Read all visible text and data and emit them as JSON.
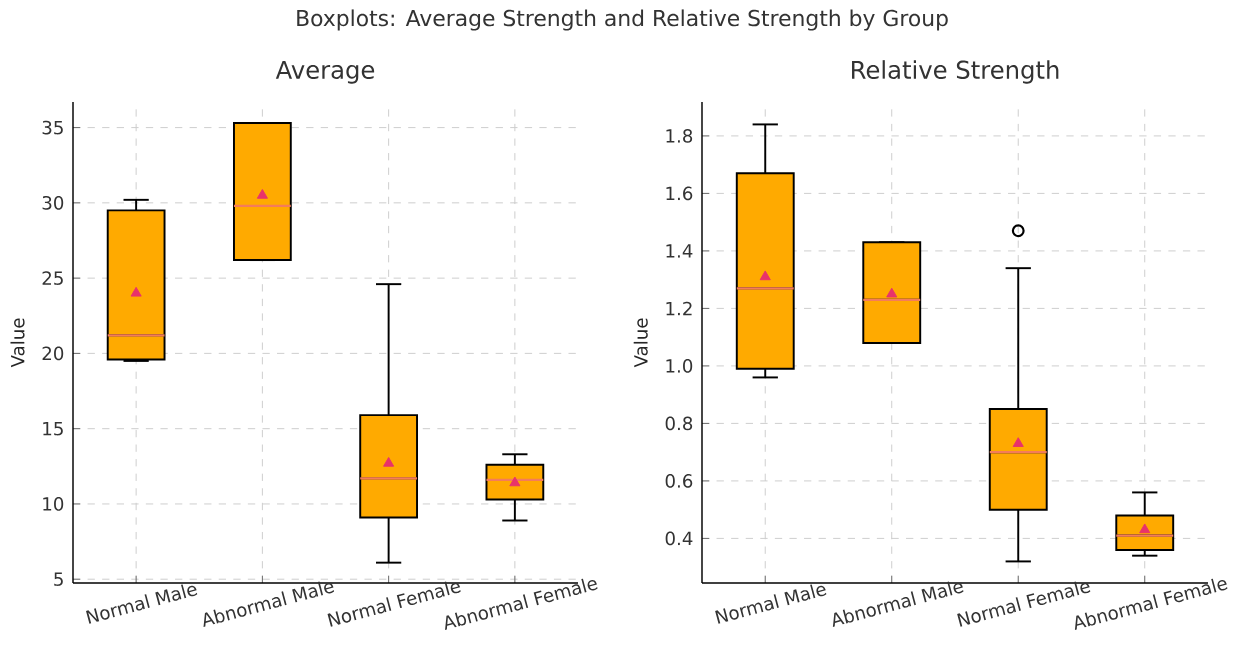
{
  "chart_data": [
    {
      "type": "box",
      "title": "Average",
      "ylabel": "Value",
      "annotations": [
        "Boxplots: Average Strength and Relative Strength by Group"
      ],
      "categories": [
        "Normal Male",
        "Abnormal Male",
        "Normal Female",
        "Abnormal Female"
      ],
      "color": "#ffaa00",
      "boxes": [
        {
          "low": 19.5,
          "q1": 19.6,
          "median": 21.2,
          "q3": 29.5,
          "high": 30.2,
          "mean": 24.0
        },
        {
          "low": 26.2,
          "q1": 26.2,
          "median": 29.8,
          "q3": 35.3,
          "high": 35.3,
          "mean": 30.5
        },
        {
          "low": 6.1,
          "q1": 9.1,
          "median": 11.7,
          "q3": 15.9,
          "high": 24.6,
          "mean": 12.7
        },
        {
          "low": 8.9,
          "q1": 10.3,
          "median": 11.6,
          "q3": 12.6,
          "high": 13.3,
          "mean": 11.4
        }
      ],
      "ylim": [
        4.75,
        36.7
      ],
      "yticks": [
        5,
        10,
        15,
        20,
        25,
        30,
        35
      ],
      "grid": true
    },
    {
      "type": "box",
      "title": "Relative Strength",
      "ylabel": "Value",
      "categories": [
        "Normal Male",
        "Abnormal Male",
        "Normal Female",
        "Abnormal Female"
      ],
      "color": "#ffaa00",
      "boxes": [
        {
          "low": 0.96,
          "q1": 0.99,
          "median": 1.27,
          "q3": 1.67,
          "high": 1.84,
          "mean": 1.31
        },
        {
          "low": 1.08,
          "q1": 1.08,
          "median": 1.23,
          "q3": 1.43,
          "high": 1.43,
          "mean": 1.25
        },
        {
          "low": 0.32,
          "q1": 0.5,
          "median": 0.7,
          "q3": 0.85,
          "high": 1.34,
          "mean": 0.73,
          "outliers": [
            1.47
          ]
        },
        {
          "low": 0.34,
          "q1": 0.36,
          "median": 0.41,
          "q3": 0.48,
          "high": 0.56,
          "mean": 0.43
        }
      ],
      "ylim": [
        0.245,
        1.918
      ],
      "yticks": [
        0.4,
        0.6,
        0.8,
        {
          "value": 1,
          "label": "1.0"
        },
        1.2,
        1.4,
        1.6,
        1.8
      ],
      "grid": true
    }
  ]
}
